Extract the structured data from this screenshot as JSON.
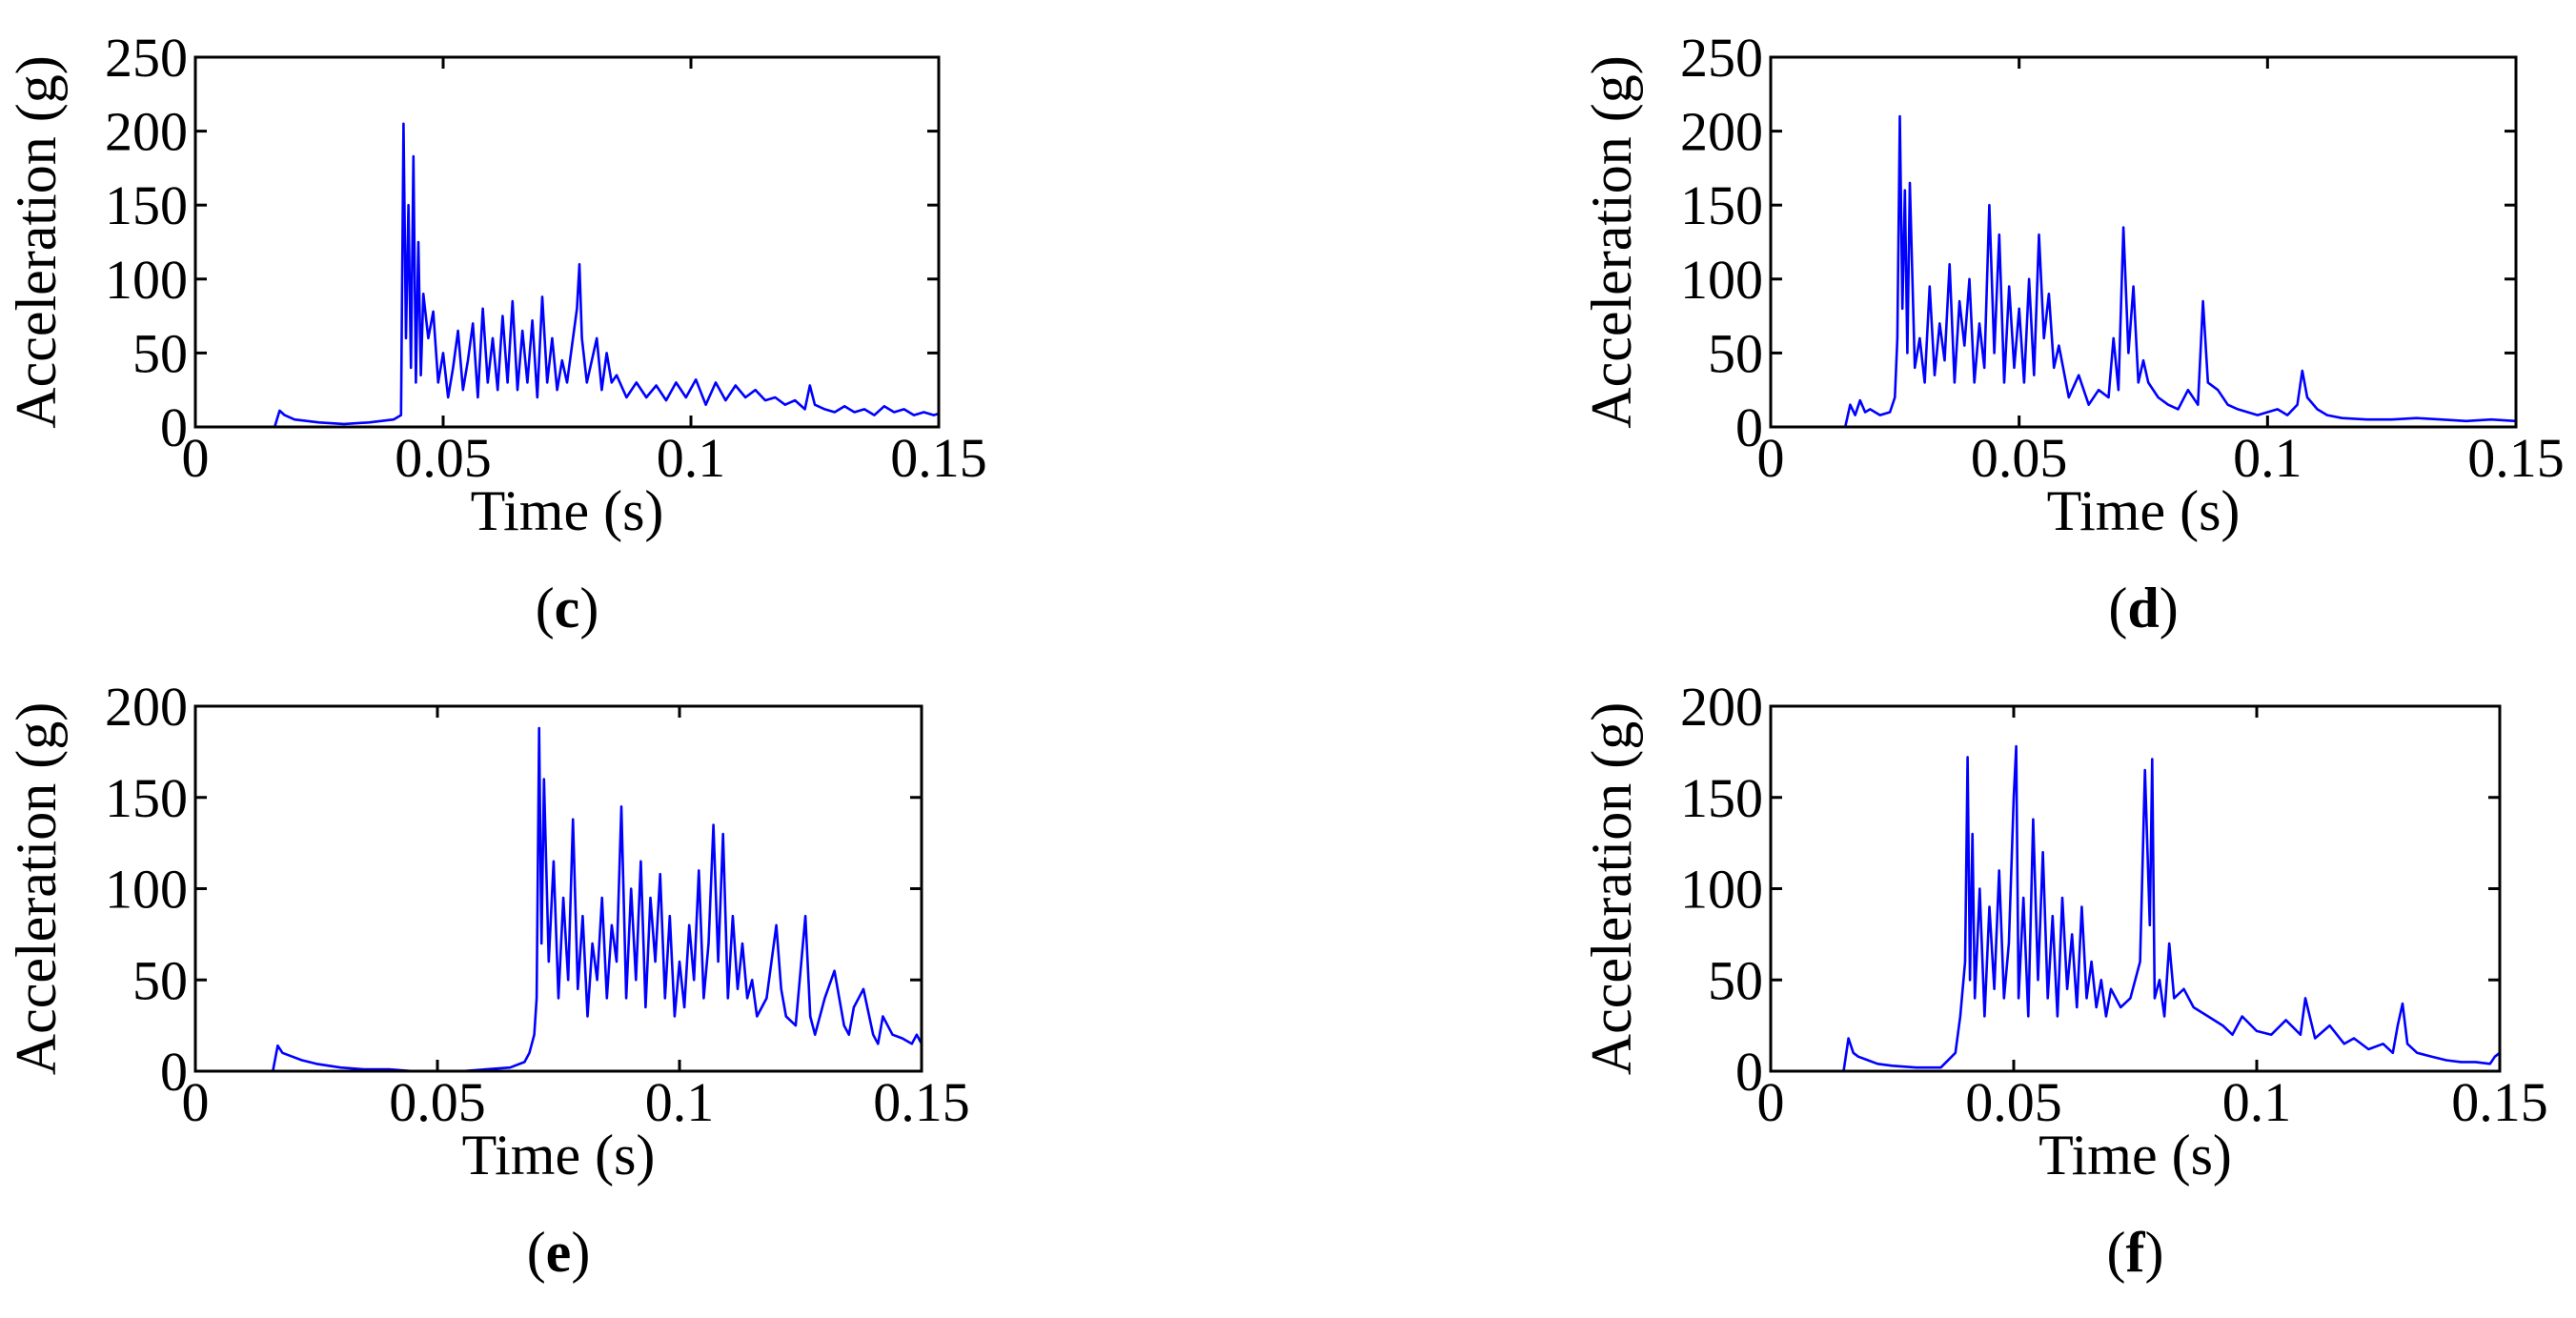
{
  "line_color": "#0000ff",
  "chart_data": [
    {
      "type": "line",
      "panel_label": "c",
      "xlabel": "Time (s)",
      "ylabel": "Acceleration (g)",
      "xlim": [
        0,
        0.15
      ],
      "ylim": [
        0,
        250
      ],
      "xticks": [
        0,
        0.05,
        0.1,
        0.15
      ],
      "xtick_labels": [
        "0",
        "0.05",
        "0.1",
        "0.15"
      ],
      "yticks": [
        0,
        50,
        100,
        150,
        200,
        250
      ],
      "ytick_labels": [
        "0",
        "50",
        "100",
        "150",
        "200",
        "250"
      ],
      "grid": false,
      "series": [
        {
          "x": [
            0,
            0.016,
            0.017,
            0.018,
            0.02,
            0.025,
            0.03,
            0.035,
            0.04,
            0.0415,
            0.042,
            0.0425,
            0.043,
            0.0435,
            0.044,
            0.0445,
            0.045,
            0.0455,
            0.046,
            0.047,
            0.048,
            0.049,
            0.05,
            0.051,
            0.052,
            0.053,
            0.054,
            0.055,
            0.056,
            0.057,
            0.058,
            0.059,
            0.06,
            0.061,
            0.062,
            0.063,
            0.064,
            0.065,
            0.066,
            0.067,
            0.068,
            0.069,
            0.07,
            0.071,
            0.072,
            0.073,
            0.074,
            0.075,
            0.076,
            0.077,
            0.0775,
            0.078,
            0.079,
            0.08,
            0.081,
            0.082,
            0.083,
            0.084,
            0.085,
            0.087,
            0.089,
            0.091,
            0.093,
            0.095,
            0.097,
            0.099,
            0.101,
            0.103,
            0.105,
            0.107,
            0.109,
            0.111,
            0.113,
            0.115,
            0.117,
            0.119,
            0.121,
            0.123,
            0.124,
            0.125,
            0.127,
            0.129,
            0.131,
            0.133,
            0.135,
            0.137,
            0.139,
            0.141,
            0.143,
            0.145,
            0.147,
            0.149,
            0.15
          ],
          "y": [
            0,
            0,
            11,
            8,
            5,
            3,
            2,
            3,
            5,
            8,
            205,
            60,
            150,
            40,
            183,
            30,
            125,
            35,
            90,
            60,
            78,
            30,
            50,
            20,
            40,
            65,
            25,
            45,
            70,
            20,
            80,
            30,
            60,
            25,
            75,
            30,
            85,
            25,
            65,
            30,
            72,
            20,
            88,
            30,
            60,
            25,
            45,
            30,
            55,
            80,
            110,
            60,
            30,
            45,
            60,
            25,
            50,
            30,
            35,
            20,
            30,
            20,
            28,
            18,
            30,
            20,
            32,
            15,
            30,
            18,
            28,
            20,
            25,
            18,
            20,
            15,
            18,
            12,
            28,
            15,
            12,
            10,
            14,
            10,
            12,
            8,
            14,
            10,
            12,
            8,
            10,
            8,
            9
          ]
        }
      ]
    },
    {
      "type": "line",
      "panel_label": "d",
      "xlabel": "Time (s)",
      "ylabel": "Acceleration (g)",
      "xlim": [
        0,
        0.15
      ],
      "ylim": [
        0,
        250
      ],
      "xticks": [
        0,
        0.05,
        0.1,
        0.15
      ],
      "xtick_labels": [
        "0",
        "0.05",
        "0.1",
        "0.15"
      ],
      "yticks": [
        0,
        50,
        100,
        150,
        200,
        250
      ],
      "ytick_labels": [
        "0",
        "50",
        "100",
        "150",
        "200",
        "250"
      ],
      "grid": false,
      "series": [
        {
          "x": [
            0,
            0.015,
            0.016,
            0.017,
            0.018,
            0.019,
            0.02,
            0.022,
            0.024,
            0.025,
            0.0255,
            0.026,
            0.0265,
            0.027,
            0.0275,
            0.028,
            0.029,
            0.03,
            0.031,
            0.032,
            0.033,
            0.034,
            0.035,
            0.036,
            0.037,
            0.038,
            0.039,
            0.04,
            0.041,
            0.042,
            0.043,
            0.044,
            0.045,
            0.046,
            0.047,
            0.048,
            0.049,
            0.05,
            0.051,
            0.052,
            0.053,
            0.054,
            0.055,
            0.056,
            0.057,
            0.058,
            0.06,
            0.062,
            0.064,
            0.066,
            0.068,
            0.069,
            0.07,
            0.071,
            0.072,
            0.073,
            0.074,
            0.075,
            0.076,
            0.078,
            0.08,
            0.082,
            0.084,
            0.086,
            0.087,
            0.088,
            0.09,
            0.092,
            0.094,
            0.096,
            0.098,
            0.1,
            0.102,
            0.104,
            0.106,
            0.107,
            0.108,
            0.11,
            0.112,
            0.115,
            0.12,
            0.125,
            0.13,
            0.135,
            0.14,
            0.145,
            0.15
          ],
          "y": [
            0,
            0,
            15,
            8,
            18,
            10,
            12,
            8,
            10,
            20,
            60,
            210,
            80,
            160,
            50,
            165,
            40,
            60,
            30,
            95,
            35,
            70,
            45,
            110,
            30,
            85,
            55,
            100,
            30,
            70,
            40,
            150,
            50,
            130,
            30,
            95,
            40,
            80,
            30,
            100,
            35,
            130,
            60,
            90,
            40,
            55,
            20,
            35,
            15,
            25,
            20,
            60,
            25,
            135,
            50,
            95,
            30,
            45,
            30,
            20,
            15,
            12,
            25,
            15,
            85,
            30,
            25,
            15,
            12,
            10,
            8,
            10,
            12,
            8,
            15,
            38,
            20,
            12,
            8,
            6,
            5,
            5,
            6,
            5,
            4,
            5,
            4
          ]
        }
      ]
    },
    {
      "type": "line",
      "panel_label": "e",
      "xlabel": "Time (s)",
      "ylabel": "Acceleration (g)",
      "xlim": [
        0,
        0.15
      ],
      "ylim": [
        0,
        200
      ],
      "xticks": [
        0,
        0.05,
        0.1,
        0.15
      ],
      "xtick_labels": [
        "0",
        "0.05",
        "0.1",
        "0.15"
      ],
      "yticks": [
        0,
        50,
        100,
        150,
        200
      ],
      "ytick_labels": [
        "0",
        "50",
        "100",
        "150",
        "200"
      ],
      "grid": false,
      "series": [
        {
          "x": [
            0,
            0.016,
            0.017,
            0.018,
            0.02,
            0.022,
            0.025,
            0.03,
            0.035,
            0.04,
            0.045,
            0.05,
            0.055,
            0.06,
            0.065,
            0.068,
            0.069,
            0.07,
            0.0705,
            0.071,
            0.0715,
            0.072,
            0.073,
            0.074,
            0.075,
            0.076,
            0.077,
            0.078,
            0.079,
            0.08,
            0.081,
            0.082,
            0.083,
            0.084,
            0.085,
            0.086,
            0.087,
            0.088,
            0.089,
            0.09,
            0.091,
            0.092,
            0.093,
            0.094,
            0.095,
            0.096,
            0.097,
            0.098,
            0.099,
            0.1,
            0.101,
            0.102,
            0.103,
            0.104,
            0.105,
            0.106,
            0.107,
            0.108,
            0.109,
            0.11,
            0.111,
            0.112,
            0.113,
            0.114,
            0.115,
            0.116,
            0.118,
            0.12,
            0.121,
            0.122,
            0.124,
            0.126,
            0.127,
            0.128,
            0.13,
            0.132,
            0.134,
            0.135,
            0.136,
            0.138,
            0.14,
            0.141,
            0.142,
            0.144,
            0.146,
            0.148,
            0.149,
            0.15
          ],
          "y": [
            0,
            0,
            14,
            10,
            8,
            6,
            4,
            2,
            1,
            1,
            0,
            0,
            0,
            1,
            2,
            5,
            10,
            20,
            40,
            188,
            70,
            160,
            60,
            115,
            40,
            95,
            50,
            138,
            45,
            85,
            30,
            70,
            50,
            95,
            40,
            80,
            60,
            145,
            40,
            100,
            50,
            115,
            35,
            95,
            60,
            108,
            40,
            85,
            30,
            60,
            35,
            80,
            50,
            110,
            40,
            70,
            135,
            60,
            130,
            40,
            85,
            45,
            70,
            40,
            50,
            30,
            40,
            80,
            45,
            30,
            25,
            85,
            30,
            20,
            40,
            55,
            25,
            20,
            35,
            45,
            20,
            15,
            30,
            20,
            18,
            15,
            20,
            15
          ]
        }
      ]
    },
    {
      "type": "line",
      "panel_label": "f",
      "xlabel": "Time (s)",
      "ylabel": "Acceleration (g)",
      "xlim": [
        0,
        0.15
      ],
      "ylim": [
        0,
        200
      ],
      "xticks": [
        0,
        0.05,
        0.1,
        0.15
      ],
      "xtick_labels": [
        "0",
        "0.05",
        "0.1",
        "0.15"
      ],
      "yticks": [
        0,
        50,
        100,
        150,
        200
      ],
      "ytick_labels": [
        "0",
        "50",
        "100",
        "150",
        "200"
      ],
      "grid": false,
      "series": [
        {
          "x": [
            0,
            0.015,
            0.016,
            0.017,
            0.018,
            0.02,
            0.022,
            0.025,
            0.03,
            0.035,
            0.038,
            0.039,
            0.04,
            0.0405,
            0.041,
            0.0415,
            0.042,
            0.043,
            0.044,
            0.045,
            0.046,
            0.047,
            0.048,
            0.049,
            0.05,
            0.0505,
            0.051,
            0.052,
            0.053,
            0.054,
            0.055,
            0.056,
            0.057,
            0.058,
            0.059,
            0.06,
            0.061,
            0.062,
            0.063,
            0.064,
            0.065,
            0.066,
            0.067,
            0.068,
            0.069,
            0.07,
            0.072,
            0.074,
            0.076,
            0.077,
            0.078,
            0.0785,
            0.079,
            0.08,
            0.081,
            0.082,
            0.083,
            0.085,
            0.087,
            0.09,
            0.093,
            0.095,
            0.097,
            0.1,
            0.103,
            0.106,
            0.109,
            0.11,
            0.112,
            0.115,
            0.118,
            0.12,
            0.123,
            0.126,
            0.128,
            0.129,
            0.13,
            0.131,
            0.133,
            0.136,
            0.139,
            0.142,
            0.145,
            0.148,
            0.149,
            0.15
          ],
          "y": [
            0,
            0,
            18,
            10,
            8,
            6,
            4,
            3,
            2,
            2,
            10,
            30,
            60,
            172,
            50,
            130,
            40,
            100,
            30,
            90,
            45,
            110,
            40,
            70,
            150,
            178,
            40,
            95,
            30,
            138,
            50,
            120,
            40,
            85,
            30,
            95,
            45,
            75,
            35,
            90,
            40,
            60,
            35,
            50,
            30,
            45,
            35,
            40,
            60,
            165,
            80,
            171,
            40,
            50,
            30,
            70,
            40,
            45,
            35,
            30,
            25,
            20,
            30,
            22,
            20,
            28,
            20,
            40,
            18,
            25,
            15,
            18,
            12,
            15,
            10,
            25,
            37,
            15,
            10,
            8,
            6,
            5,
            5,
            4,
            8,
            10
          ]
        }
      ]
    }
  ]
}
